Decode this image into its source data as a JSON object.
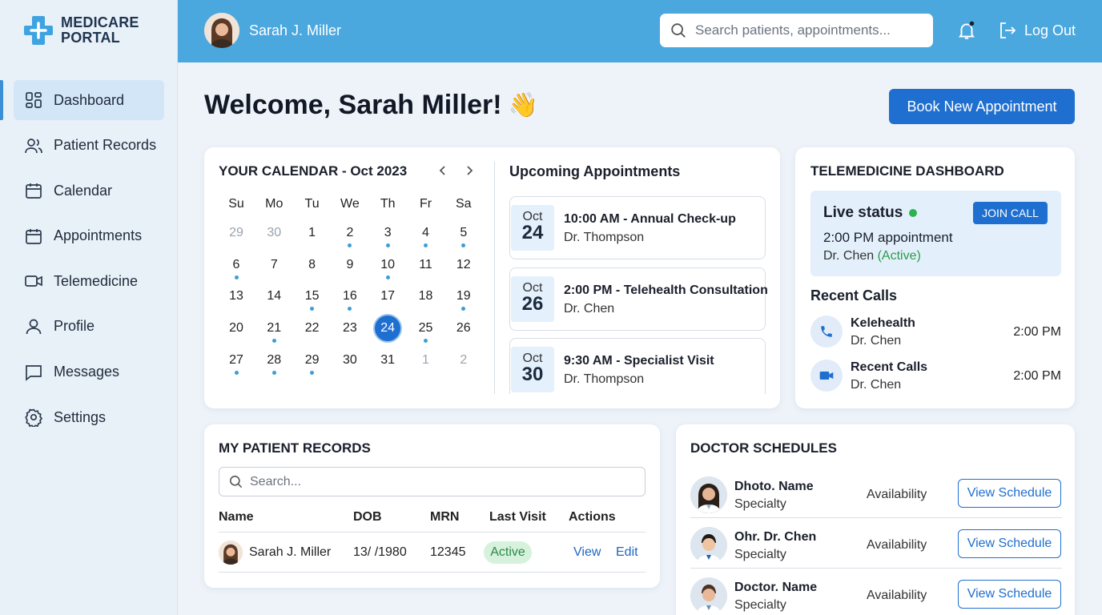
{
  "app": {
    "logo_line1": "MEDICARE",
    "logo_line2": "PORTAL",
    "accent_color": "#1f6fd0",
    "topbar_color": "#4aa8df"
  },
  "sidebar": {
    "items": [
      {
        "label": "Dashboard",
        "icon": "grid-icon",
        "active": true
      },
      {
        "label": "Patient Records",
        "icon": "users-icon"
      },
      {
        "label": "Calendar",
        "icon": "calendar-icon"
      },
      {
        "label": "Appointments",
        "icon": "calendar-icon"
      },
      {
        "label": "Telemedicine",
        "icon": "video-icon"
      },
      {
        "label": "Profile",
        "icon": "user-icon"
      },
      {
        "label": "Messages",
        "icon": "message-icon"
      },
      {
        "label": "Settings",
        "icon": "gear-icon"
      }
    ]
  },
  "header": {
    "user_name": "Sarah J. Miller",
    "search_placeholder": "Search patients, appointments...",
    "logout_label": "Log Out"
  },
  "main": {
    "welcome": "Welcome, Sarah Miller!",
    "welcome_emoji": "👋",
    "book_button": "Book New Appointment"
  },
  "calendar": {
    "title": "YOUR CALENDAR - Oct 2023",
    "weekdays": [
      "Su",
      "Mo",
      "Tu",
      "We",
      "Th",
      "Fr",
      "Sa"
    ],
    "weeks": [
      [
        "29",
        "30",
        "1",
        "2",
        "3",
        "4",
        "5"
      ],
      [
        "6",
        "7",
        "8",
        "9",
        "10",
        "11",
        "12"
      ],
      [
        "13",
        "14",
        "15",
        "16",
        "17",
        "18",
        "19"
      ],
      [
        "20",
        "21",
        "22",
        "23",
        "24",
        "25",
        "26"
      ],
      [
        "27",
        "28",
        "29",
        "30",
        "31",
        "1",
        "2"
      ]
    ],
    "selected_day": "24",
    "event_days": [
      "2",
      "3",
      "4",
      "5",
      "6",
      "10",
      "15",
      "16",
      "19",
      "21",
      "25",
      "27",
      "28",
      "29"
    ]
  },
  "upcoming": {
    "title": "Upcoming Appointments",
    "items": [
      {
        "month": "Oct",
        "day": "24",
        "title": "10:00 AM - Annual Check-up",
        "doctor": "Dr. Thompson"
      },
      {
        "month": "Oct",
        "day": "26",
        "title": "2:00 PM - Telehealth Consultation",
        "doctor": "Dr. Chen"
      },
      {
        "month": "Oct",
        "day": "30",
        "title": "9:30 AM - Specialist Visit",
        "doctor": "Dr. Thompson"
      }
    ]
  },
  "telemedicine": {
    "title": "TELEMEDICINE DASHBOARD",
    "live_label": "Live status",
    "status_color": "#2eb24f",
    "join_label": "JOIN CALL",
    "appt_time": "2:00 PM appointment",
    "appt_doctor": "Dr. Chen",
    "appt_state": "(Active)",
    "recent_title": "Recent Calls",
    "recent": [
      {
        "name": "Kelehealth",
        "doctor": "Dr. Chen",
        "time": "2:00 PM",
        "icon": "phone-icon"
      },
      {
        "name": "Recent Calls",
        "doctor": "Dr. Chen",
        "time": "2:00 PM",
        "icon": "video-icon"
      }
    ]
  },
  "records": {
    "title": "MY PATIENT RECORDS",
    "search_placeholder": "Search...",
    "columns": [
      "Name",
      "DOB",
      "MRN",
      "Last Visit",
      "Actions"
    ],
    "rows": [
      {
        "name": "Sarah J. Miller",
        "dob": "13/ /1980",
        "mrn": "12345",
        "status": "Active",
        "view": "View",
        "edit": "Edit"
      }
    ]
  },
  "schedules": {
    "title": "DOCTOR SCHEDULES",
    "doctors": [
      {
        "name": "Dhoto. Name",
        "specialty": "Specialty",
        "availability": "Availability",
        "button": "View Schedule"
      },
      {
        "name": "Ohr. Dr. Chen",
        "specialty": "Specialty",
        "availability": "Availability",
        "button": "View Schedule"
      },
      {
        "name": "Doctor. Name",
        "specialty": "Specialty",
        "availability": "Availability",
        "button": "View Schedule"
      }
    ]
  }
}
